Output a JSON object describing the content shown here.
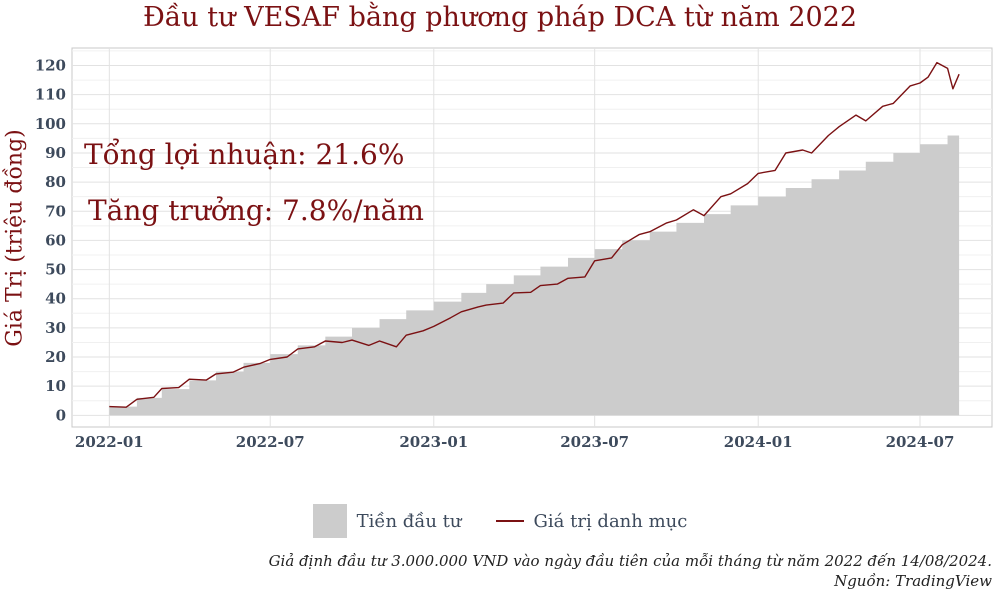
{
  "chart_data": {
    "type": "area",
    "title": "Đầu tư VESAF bằng phương pháp DCA từ năm 2022",
    "ylabel": "Giá Trị (triệu đồng)",
    "xlabel": "",
    "ylim": [
      -4,
      126
    ],
    "yticks": [
      0,
      10,
      20,
      30,
      40,
      50,
      60,
      70,
      80,
      90,
      100,
      110,
      120
    ],
    "xticks": [
      "2022-01",
      "2022-07",
      "2023-01",
      "2023-07",
      "2024-01",
      "2024-07"
    ],
    "xlim": [
      "2021-11-20",
      "2024-09-20"
    ],
    "grid": true,
    "legend_position": "bottom",
    "annotations": [
      "Tổng lợi nhuận: 21.6%",
      "Tăng trưởng: 7.8%/năm"
    ],
    "series": [
      {
        "name": "Tiền đầu tư",
        "type": "step-area",
        "color": "#cccccc",
        "x": [
          "2022-01-01",
          "2022-02-01",
          "2022-03-01",
          "2022-04-01",
          "2022-05-01",
          "2022-06-01",
          "2022-07-01",
          "2022-08-01",
          "2022-09-01",
          "2022-10-01",
          "2022-11-01",
          "2022-12-01",
          "2023-01-01",
          "2023-02-01",
          "2023-03-01",
          "2023-04-01",
          "2023-05-01",
          "2023-06-01",
          "2023-07-01",
          "2023-08-01",
          "2023-09-01",
          "2023-10-01",
          "2023-11-01",
          "2023-12-01",
          "2024-01-01",
          "2024-02-01",
          "2024-03-01",
          "2024-04-01",
          "2024-05-01",
          "2024-06-01",
          "2024-07-01",
          "2024-08-01",
          "2024-08-14"
        ],
        "values": [
          3,
          6,
          9,
          12,
          15,
          18,
          21,
          24,
          27,
          30,
          33,
          36,
          39,
          42,
          45,
          48,
          51,
          54,
          57,
          60,
          63,
          66,
          69,
          72,
          75,
          78,
          81,
          84,
          87,
          90,
          93,
          96,
          96
        ]
      },
      {
        "name": "Giá trị danh mục",
        "type": "line",
        "color": "#7b1113",
        "x": [
          "2022-01-01",
          "2022-01-20",
          "2022-02-01",
          "2022-02-20",
          "2022-03-01",
          "2022-03-20",
          "2022-04-01",
          "2022-04-20",
          "2022-05-01",
          "2022-05-20",
          "2022-06-01",
          "2022-06-20",
          "2022-07-01",
          "2022-07-20",
          "2022-08-01",
          "2022-08-20",
          "2022-09-01",
          "2022-09-20",
          "2022-10-01",
          "2022-10-20",
          "2022-11-01",
          "2022-11-20",
          "2022-12-01",
          "2022-12-20",
          "2023-01-01",
          "2023-01-20",
          "2023-02-01",
          "2023-02-20",
          "2023-03-01",
          "2023-03-20",
          "2023-04-01",
          "2023-04-20",
          "2023-05-01",
          "2023-05-20",
          "2023-06-01",
          "2023-06-20",
          "2023-07-01",
          "2023-07-20",
          "2023-08-01",
          "2023-08-20",
          "2023-09-01",
          "2023-09-20",
          "2023-10-01",
          "2023-10-20",
          "2023-11-01",
          "2023-11-20",
          "2023-12-01",
          "2023-12-20",
          "2024-01-01",
          "2024-01-20",
          "2024-02-01",
          "2024-02-20",
          "2024-03-01",
          "2024-03-20",
          "2024-04-01",
          "2024-04-20",
          "2024-05-01",
          "2024-05-20",
          "2024-06-01",
          "2024-06-20",
          "2024-07-01",
          "2024-07-10",
          "2024-07-20",
          "2024-08-01",
          "2024-08-07",
          "2024-08-14"
        ],
        "values": [
          3,
          2.8,
          5.5,
          6.2,
          9.2,
          9.5,
          12.4,
          12.1,
          14.2,
          14.8,
          16.5,
          17.8,
          19.2,
          20,
          22.8,
          23.5,
          25.5,
          25,
          25.8,
          24,
          25.5,
          23.5,
          27.5,
          29,
          30.5,
          33.5,
          35.5,
          37.2,
          37.8,
          38.5,
          42,
          42.2,
          44.5,
          45,
          47,
          47.5,
          53,
          54,
          58.5,
          62,
          63,
          66,
          67,
          70.5,
          68.5,
          75,
          76,
          79.5,
          83,
          84,
          90,
          91,
          90,
          96,
          99,
          103,
          101,
          106,
          107,
          113,
          114,
          116,
          121,
          119,
          112,
          117
        ]
      }
    ],
    "footer": {
      "note": "Giả định đầu tư 3.000.000 VND vào ngày đầu tiên của mỗi tháng từ năm 2022 đến 14/08/2024.",
      "source": "Nguồn: TradingView"
    }
  }
}
